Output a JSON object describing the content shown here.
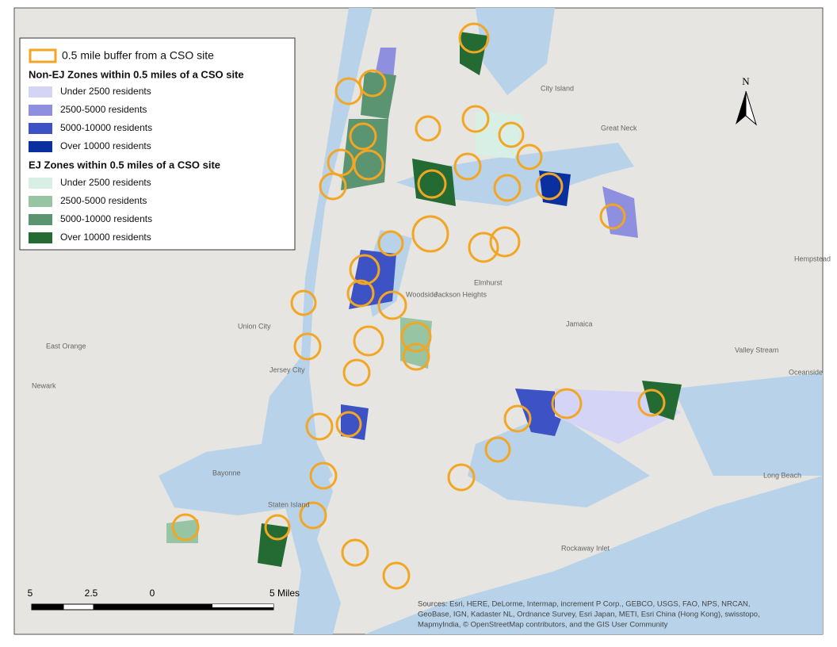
{
  "legend": {
    "buffer_label": "0.5 mile buffer from a CSO site",
    "non_ej": {
      "title": "Non-EJ Zones within 0.5 miles of a CSO site",
      "items": [
        "Under 2500 residents",
        "2500-5000 residents",
        "5000-10000 residents",
        "Over 10000 residents"
      ]
    },
    "ej": {
      "title": "EJ Zones within 0.5 miles of a CSO site",
      "items": [
        "Under 2500 residents",
        "2500-5000 residents",
        "5000-10000 residents",
        "Over 10000 residents"
      ]
    }
  },
  "north_arrow": "N",
  "scale_bar": {
    "labels": [
      "5",
      "2.5",
      "0",
      "5 Miles"
    ]
  },
  "sources": [
    "Sources: Esri, HERE, DeLorme, Intermap, increment P Corp., GEBCO, USGS, FAO, NPS, NRCAN,",
    "GeoBase, IGN, Kadaster NL, Ordnance Survey, Esri Japan, METI, Esri China (Hong Kong), swisstopo,",
    "MapmyIndia, © OpenStreetMap contributors, and the GIS User Community"
  ],
  "places": [
    "Newark",
    "East Orange",
    "Jersey City",
    "Union City",
    "Bayonne",
    "Staten Island",
    "Jackson Heights",
    "Elmhurst",
    "Woodside",
    "Jamaica",
    "Great Neck",
    "City Island",
    "Valley Stream",
    "Long Beach",
    "Rockaway Inlet",
    "Oceanside",
    "Hempstead"
  ]
}
